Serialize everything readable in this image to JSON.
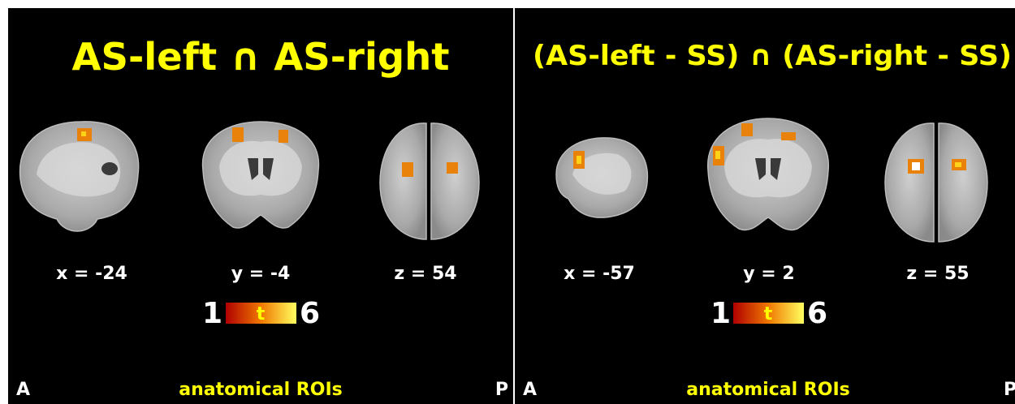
{
  "panels": [
    {
      "title": "AS-left ∩ AS-right",
      "slices": [
        {
          "label": "x = -24"
        },
        {
          "label": "y = -4"
        },
        {
          "label": "z = 54"
        }
      ],
      "colorbar": {
        "min": 1,
        "label": "t",
        "max": 6
      },
      "footer": {
        "left": "A",
        "center": "anatomical ROIs",
        "right": "P"
      }
    },
    {
      "title": "(AS-left - SS) ∩ (AS-right - SS)",
      "slices": [
        {
          "label": "x = -57"
        },
        {
          "label": "y = 2"
        },
        {
          "label": "z = 55"
        }
      ],
      "colorbar": {
        "min": 1,
        "label": "t",
        "max": 6
      },
      "footer": {
        "left": "A",
        "center": "anatomical ROIs",
        "right": "P"
      }
    }
  ]
}
